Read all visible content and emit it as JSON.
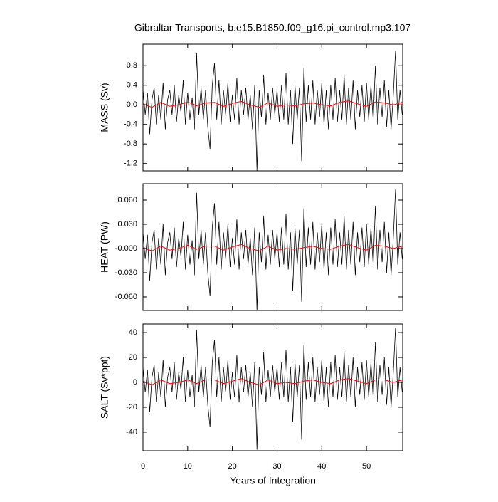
{
  "chart_data": [
    {
      "type": "line",
      "title": "Gibraltar Transports, b.e15.B1850.f09_g16.pi_control.mp3.107",
      "ylabel": "MASS (Sv)",
      "xlim": [
        0,
        58.1
      ],
      "ylim": [
        -1.35,
        1.24
      ],
      "yticks": [
        0.8,
        0.4,
        {
          "value": 0,
          "label": "0.0"
        },
        -0.4,
        -0.8,
        -1.2
      ],
      "series": [
        {
          "color": "#000000",
          "x": [
            0,
            0.5,
            1,
            1.5,
            2,
            2.5,
            3,
            3.5,
            4,
            4.5,
            5,
            5.5,
            6,
            6.5,
            7,
            7.5,
            8,
            8.5,
            9,
            9.5,
            10,
            10.5,
            11,
            11.5,
            12,
            12.5,
            13,
            13.5,
            14,
            14.5,
            15,
            15.5,
            16,
            16.5,
            17,
            17.5,
            18,
            18.5,
            19,
            19.5,
            20,
            20.5,
            21,
            21.5,
            22,
            22.5,
            23,
            23.5,
            24,
            24.5,
            25,
            25.5,
            26,
            26.5,
            27,
            27.5,
            28,
            28.5,
            29,
            29.5,
            30,
            30.5,
            31,
            31.5,
            32,
            32.5,
            33,
            33.5,
            34,
            34.5,
            35,
            35.5,
            36,
            36.5,
            37,
            37.5,
            38,
            38.5,
            39,
            39.5,
            40,
            40.5,
            41,
            41.5,
            42,
            42.5,
            43,
            43.5,
            44,
            44.5,
            45,
            45.5,
            46,
            46.5,
            47,
            47.5,
            48,
            48.5,
            49,
            49.5,
            50,
            50.5,
            51,
            51.5,
            52,
            52.5,
            53,
            53.5,
            54,
            54.5,
            55,
            55.5,
            56,
            56.5,
            57,
            57.5,
            58
          ],
          "values": [
            0.3,
            -0.2,
            0.25,
            -0.6,
            0.1,
            0.35,
            -0.4,
            0.2,
            -0.3,
            0.45,
            -0.5,
            0.1,
            0.3,
            -0.2,
            0.4,
            -0.35,
            0.2,
            -0.15,
            0.5,
            -0.4,
            0.25,
            -0.3,
            0.15,
            -0.5,
            1.05,
            -0.2,
            0.35,
            -0.3,
            0.3,
            -0.45,
            -0.9,
            0.4,
            0.85,
            -0.3,
            0.5,
            -0.4,
            0.3,
            -0.2,
            0.45,
            -0.35,
            0.2,
            -0.3,
            0.55,
            -0.4,
            0.3,
            -0.2,
            0.35,
            -0.3,
            0.2,
            -0.5,
            0.4,
            -1.35,
            0.3,
            -0.25,
            0.6,
            -0.4,
            0.25,
            -0.3,
            0.35,
            -0.2,
            0.3,
            -0.35,
            0.4,
            -0.3,
            0.65,
            -0.4,
            0.3,
            -0.8,
            0.4,
            -0.3,
            0.35,
            -1.15,
            0.75,
            -0.35,
            0.4,
            -0.3,
            0.5,
            -0.4,
            0.3,
            -0.25,
            0.45,
            -0.4,
            0.3,
            -0.5,
            0.4,
            -0.3,
            0.55,
            -0.35,
            0.3,
            -0.3,
            0.6,
            -0.4,
            0.35,
            -0.3,
            0.5,
            -0.5,
            0.3,
            -0.25,
            0.4,
            -0.35,
            0.45,
            -0.3,
            0.4,
            -0.3,
            0.8,
            -0.4,
            0.35,
            -0.25,
            0.5,
            -0.45,
            0.3,
            -0.5,
            0.2,
            1.1,
            -0.3,
            0.3,
            -0.2
          ]
        },
        {
          "color": "#ff0000",
          "x": [
            0,
            2,
            4,
            6,
            8,
            10,
            12,
            14,
            16,
            18,
            20,
            22,
            24,
            26,
            28,
            30,
            32,
            34,
            36,
            38,
            40,
            42,
            44,
            46,
            48,
            50,
            52,
            54,
            56,
            58
          ],
          "values": [
            0.02,
            -0.05,
            0.05,
            -0.03,
            0,
            0.06,
            -0.02,
            0.04,
            0.05,
            -0.03,
            0.03,
            0.07,
            0,
            -0.05,
            0.04,
            -0.03,
            0,
            -0.02,
            0.02,
            0.04,
            0,
            -0.02,
            0.05,
            0.08,
            0.02,
            -0.03,
            0.06,
            0.04,
            0,
            0.05
          ]
        }
      ]
    },
    {
      "type": "line",
      "ylabel": "HEAT (PW)",
      "xlim": [
        0,
        58.1
      ],
      "ylim": [
        -0.0768,
        0.0803
      ],
      "yticks": [
        {
          "value": 0.06,
          "label": "0.060"
        },
        {
          "value": 0.03,
          "label": "0.030"
        },
        {
          "value": 0,
          "label": "-0.000"
        },
        {
          "value": -0.03,
          "label": "-0.030"
        },
        {
          "value": -0.06,
          "label": "-0.060"
        }
      ],
      "series": [
        {
          "color": "#000000",
          "x": [
            0,
            0.5,
            1,
            1.5,
            2,
            2.5,
            3,
            3.5,
            4,
            4.5,
            5,
            5.5,
            6,
            6.5,
            7,
            7.5,
            8,
            8.5,
            9,
            9.5,
            10,
            10.5,
            11,
            11.5,
            12,
            12.5,
            13,
            13.5,
            14,
            14.5,
            15,
            15.5,
            16,
            16.5,
            17,
            17.5,
            18,
            18.5,
            19,
            19.5,
            20,
            20.5,
            21,
            21.5,
            22,
            22.5,
            23,
            23.5,
            24,
            24.5,
            25,
            25.5,
            26,
            26.5,
            27,
            27.5,
            28,
            28.5,
            29,
            29.5,
            30,
            30.5,
            31,
            31.5,
            32,
            32.5,
            33,
            33.5,
            34,
            34.5,
            35,
            35.5,
            36,
            36.5,
            37,
            37.5,
            38,
            38.5,
            39,
            39.5,
            40,
            40.5,
            41,
            41.5,
            42,
            42.5,
            43,
            43.5,
            44,
            44.5,
            45,
            45.5,
            46,
            46.5,
            47,
            47.5,
            48,
            48.5,
            49,
            49.5,
            50,
            50.5,
            51,
            51.5,
            52,
            52.5,
            53,
            53.5,
            54,
            54.5,
            55,
            55.5,
            56,
            56.5,
            57,
            57.5,
            58
          ],
          "values": [
            0.02,
            -0.013,
            0.017,
            -0.04,
            0.007,
            0.023,
            -0.026,
            0.013,
            -0.02,
            0.03,
            -0.033,
            0.007,
            0.02,
            -0.013,
            0.026,
            -0.023,
            0.013,
            -0.01,
            0.033,
            -0.026,
            0.017,
            -0.02,
            0.01,
            -0.033,
            0.069,
            -0.013,
            0.023,
            -0.02,
            0.02,
            -0.03,
            -0.059,
            0.026,
            0.056,
            -0.02,
            0.033,
            -0.026,
            0.02,
            -0.013,
            0.03,
            -0.023,
            0.013,
            -0.02,
            0.036,
            -0.026,
            0.02,
            -0.013,
            0.023,
            -0.02,
            0.013,
            -0.033,
            0.026,
            -0.077,
            0.02,
            -0.017,
            0.04,
            -0.026,
            0.017,
            -0.02,
            0.023,
            -0.013,
            0.02,
            -0.023,
            0.026,
            -0.02,
            0.043,
            -0.026,
            0.02,
            -0.053,
            0.026,
            -0.02,
            0.023,
            -0.066,
            0.05,
            -0.023,
            0.026,
            -0.02,
            0.033,
            -0.026,
            0.02,
            -0.017,
            0.03,
            -0.026,
            0.02,
            -0.033,
            0.026,
            -0.02,
            0.036,
            -0.023,
            0.02,
            -0.02,
            0.04,
            -0.026,
            0.023,
            -0.02,
            0.033,
            -0.033,
            0.02,
            -0.017,
            0.026,
            -0.023,
            0.03,
            -0.02,
            0.026,
            -0.02,
            0.053,
            -0.026,
            0.023,
            -0.017,
            0.033,
            -0.03,
            0.02,
            -0.033,
            0.013,
            0.073,
            -0.02,
            0.02,
            -0.013
          ]
        },
        {
          "color": "#ff0000",
          "x": [
            0,
            2,
            4,
            6,
            8,
            10,
            12,
            14,
            16,
            18,
            20,
            22,
            24,
            26,
            28,
            30,
            32,
            34,
            36,
            38,
            40,
            42,
            44,
            46,
            48,
            50,
            52,
            54,
            56,
            58
          ],
          "values": [
            0.001,
            -0.003,
            0.003,
            -0.002,
            0,
            0.004,
            -0.001,
            0.003,
            0.003,
            -0.002,
            0.002,
            0.005,
            0,
            -0.003,
            0.003,
            -0.002,
            0,
            -0.001,
            0.001,
            0.003,
            0,
            -0.001,
            0.003,
            0.005,
            0.001,
            -0.002,
            0.004,
            0.003,
            0,
            0.003
          ]
        }
      ]
    },
    {
      "type": "line",
      "ylabel": "SALT (Sv*ppt)",
      "xlabel": "Years of Integration",
      "xlim": [
        0,
        58.1
      ],
      "ylim": [
        -54.9,
        46.9
      ],
      "xticks": [
        0,
        10,
        20,
        30,
        40,
        50
      ],
      "yticks": [
        40,
        20,
        0,
        -20,
        -40
      ],
      "series": [
        {
          "color": "#000000",
          "x": [
            0,
            0.5,
            1,
            1.5,
            2,
            2.5,
            3,
            3.5,
            4,
            4.5,
            5,
            5.5,
            6,
            6.5,
            7,
            7.5,
            8,
            8.5,
            9,
            9.5,
            10,
            10.5,
            11,
            11.5,
            12,
            12.5,
            13,
            13.5,
            14,
            14.5,
            15,
            15.5,
            16,
            16.5,
            17,
            17.5,
            18,
            18.5,
            19,
            19.5,
            20,
            20.5,
            21,
            21.5,
            22,
            22.5,
            23,
            23.5,
            24,
            24.5,
            25,
            25.5,
            26,
            26.5,
            27,
            27.5,
            28,
            28.5,
            29,
            29.5,
            30,
            30.5,
            31,
            31.5,
            32,
            32.5,
            33,
            33.5,
            34,
            34.5,
            35,
            35.5,
            36,
            36.5,
            37,
            37.5,
            38,
            38.5,
            39,
            39.5,
            40,
            40.5,
            41,
            41.5,
            42,
            42.5,
            43,
            43.5,
            44,
            44.5,
            45,
            45.5,
            46,
            46.5,
            47,
            47.5,
            48,
            48.5,
            49,
            49.5,
            50,
            50.5,
            51,
            51.5,
            52,
            52.5,
            53,
            53.5,
            54,
            54.5,
            55,
            55.5,
            56,
            56.5,
            57,
            57.5,
            58
          ],
          "values": [
            12,
            -8,
            10,
            -24,
            4,
            14,
            -16,
            8,
            -12,
            18,
            -20,
            4,
            12,
            -8,
            16,
            -14,
            8,
            -6,
            20,
            -16,
            10,
            -12,
            6,
            -20,
            42,
            -8,
            14,
            -12,
            12,
            -18,
            -36,
            16,
            34,
            -12,
            20,
            -16,
            12,
            -8,
            18,
            -14,
            8,
            -12,
            22,
            -16,
            12,
            -8,
            14,
            -12,
            8,
            -20,
            16,
            -54,
            12,
            -10,
            24,
            -16,
            10,
            -12,
            14,
            -8,
            12,
            -14,
            16,
            -12,
            26,
            -16,
            12,
            -32,
            16,
            -12,
            14,
            -46,
            30,
            -14,
            16,
            -12,
            20,
            -16,
            12,
            -10,
            18,
            -16,
            12,
            -20,
            16,
            -12,
            22,
            -14,
            12,
            -12,
            24,
            -16,
            14,
            -12,
            20,
            -20,
            12,
            -10,
            16,
            -14,
            18,
            -12,
            16,
            -12,
            32,
            -16,
            14,
            -10,
            20,
            -18,
            12,
            -20,
            8,
            44,
            -12,
            12,
            -8
          ]
        },
        {
          "color": "#ff0000",
          "x": [
            0,
            2,
            4,
            6,
            8,
            10,
            12,
            14,
            16,
            18,
            20,
            22,
            24,
            26,
            28,
            30,
            32,
            34,
            36,
            38,
            40,
            42,
            44,
            46,
            48,
            50,
            52,
            54,
            56,
            58
          ],
          "values": [
            1,
            -2,
            2,
            -1,
            0,
            2,
            -1,
            2,
            2,
            -1,
            1,
            3,
            0,
            -2,
            2,
            -1,
            0,
            -1,
            1,
            2,
            0,
            -1,
            2,
            3,
            1,
            -1,
            2,
            2,
            0,
            2
          ]
        }
      ]
    }
  ]
}
